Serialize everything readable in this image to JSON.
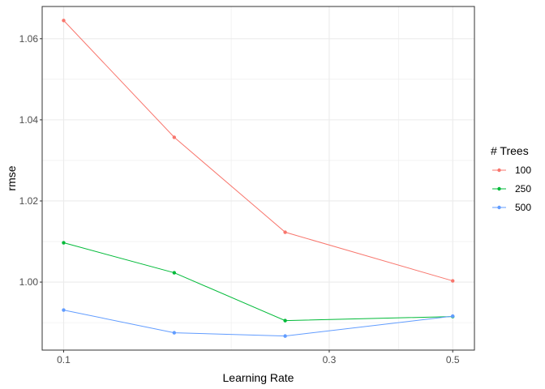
{
  "chart_data": {
    "type": "line",
    "title": "",
    "xlabel": "Learning Rate",
    "ylabel": "rmse",
    "x_scale": "log10",
    "xlim": [
      0.0915,
      0.547
    ],
    "ylim": [
      0.98323,
      1.06795
    ],
    "x_ticks": [
      0.1,
      0.3,
      0.5
    ],
    "x_tick_labels": [
      "0.1",
      "0.3",
      "0.5"
    ],
    "x_minor_ticks": [
      0.2,
      0.4
    ],
    "y_ticks": [
      1.0,
      1.02,
      1.04,
      1.06
    ],
    "y_tick_labels": [
      "1.00",
      "1.02",
      "1.04",
      "1.06"
    ],
    "grid": true,
    "legend": {
      "title": "# Trees",
      "placement": "right"
    },
    "x": [
      0.1,
      0.158,
      0.25,
      0.5
    ],
    "series": [
      {
        "name": "100",
        "color": "#F8766D",
        "values": [
          1.0645,
          1.0357,
          1.0123,
          1.0003
        ]
      },
      {
        "name": "250",
        "color": "#00BA38",
        "values": [
          1.0097,
          1.0023,
          0.9905,
          0.9915
        ]
      },
      {
        "name": "500",
        "color": "#619CFF",
        "values": [
          0.9931,
          0.9875,
          0.9867,
          0.9916
        ]
      }
    ]
  }
}
